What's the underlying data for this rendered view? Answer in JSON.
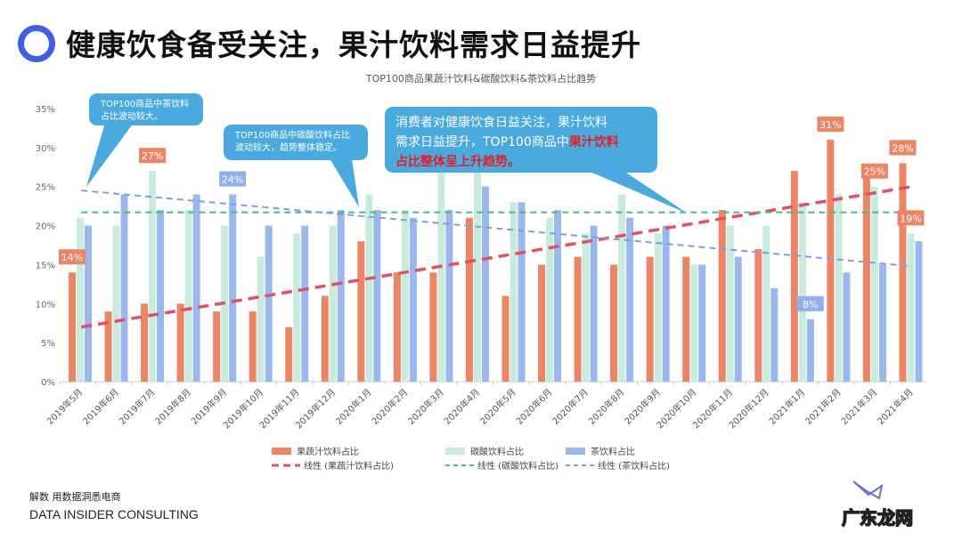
{
  "header": {
    "title": "健康饮食备受关注，果汁饮料需求日益提升"
  },
  "footer": {
    "tagline": "解数 用数据洞悉电商",
    "company": "DATA INSIDER CONSULTING",
    "watermark": "广东龙网"
  },
  "callouts": [
    {
      "lines": [
        "TOP100商品中茶饮料",
        "占比波动较大。"
      ]
    },
    {
      "lines": [
        "TOP100商品中碳酸饮料占比",
        "波动较大，趋势整体稳定。"
      ]
    },
    {
      "lines": [
        "消费者对健康饮食日益关注，果汁饮料",
        "需求日益提升，TOP100商品中"
      ],
      "highlight": [
        "果汁饮料",
        "占比整体呈上升趋势。"
      ]
    }
  ],
  "chart_data": {
    "type": "bar",
    "title": "TOP100商品果蔬汁饮料&碳酸饮料&茶饮料占比趋势",
    "ylim": [
      0,
      35
    ],
    "yticks": [
      "0%",
      "5%",
      "10%",
      "15%",
      "20%",
      "25%",
      "30%",
      "35%"
    ],
    "categories": [
      "2019年5月",
      "2019年6月",
      "2019年7月",
      "2019年8月",
      "2019年9月",
      "2019年10月",
      "2019年11月",
      "2019年12月",
      "2020年1月",
      "2020年2月",
      "2020年3月",
      "2020年4月",
      "2020年5月",
      "2020年6月",
      "2020年7月",
      "2020年8月",
      "2020年9月",
      "2020年10月",
      "2020年11月",
      "2020年12月",
      "2021年1月",
      "2021年2月",
      "2021年3月",
      "2021年4月"
    ],
    "series": [
      {
        "name": "果蔬汁饮料占比",
        "color": "#ec8466",
        "values": [
          14,
          9,
          10,
          10,
          9,
          9,
          7,
          11,
          18,
          14,
          14,
          21,
          11,
          15,
          16,
          15,
          16,
          16,
          22,
          17,
          27,
          31,
          27,
          28
        ]
      },
      {
        "name": "碳酸饮料占比",
        "color": "#c9ebdd",
        "values": [
          21,
          20,
          27,
          22,
          20,
          16,
          19,
          20,
          24,
          22,
          28,
          27,
          23,
          21,
          19,
          24,
          19,
          15,
          20,
          20,
          23,
          24,
          25,
          19
        ]
      },
      {
        "name": "茶饮料占比",
        "color": "#9ab8ec",
        "values": [
          20,
          24,
          22,
          24,
          24,
          20,
          20,
          22,
          22,
          21,
          22,
          25,
          23,
          22,
          20,
          21,
          20,
          15,
          16,
          12,
          8,
          14,
          15,
          18
        ]
      }
    ],
    "trendlines": [
      {
        "name": "线性 (果蔬汁饮料占比)",
        "color": "#e0506a",
        "start": 7,
        "end": 25
      },
      {
        "name": "线性 (碳酸饮料占比)",
        "color": "#4cb883",
        "start": 21.7,
        "end": 21.7
      },
      {
        "name": "线性 (茶饮料占比)",
        "color": "#7f9fd8",
        "start": 24.5,
        "end": 14.8
      }
    ],
    "data_labels": [
      {
        "series": 0,
        "index": 0,
        "text": "14%"
      },
      {
        "series": 1,
        "index": 2,
        "text": "27%"
      },
      {
        "series": 2,
        "index": 4,
        "text": "24%"
      },
      {
        "series": 0,
        "index": 21,
        "text": "31%"
      },
      {
        "series": 1,
        "index": 22,
        "text": "25%"
      },
      {
        "series": 0,
        "index": 23,
        "text": "28%"
      },
      {
        "series": 1,
        "index": 23,
        "text": "19%"
      },
      {
        "series": 2,
        "index": 20,
        "text": "8%"
      }
    ],
    "legend_position": "bottom",
    "grid": false
  },
  "colors": {
    "callout": "#4aa9dd",
    "highlight": "#e0202a",
    "ring": "#3f5fe0"
  }
}
